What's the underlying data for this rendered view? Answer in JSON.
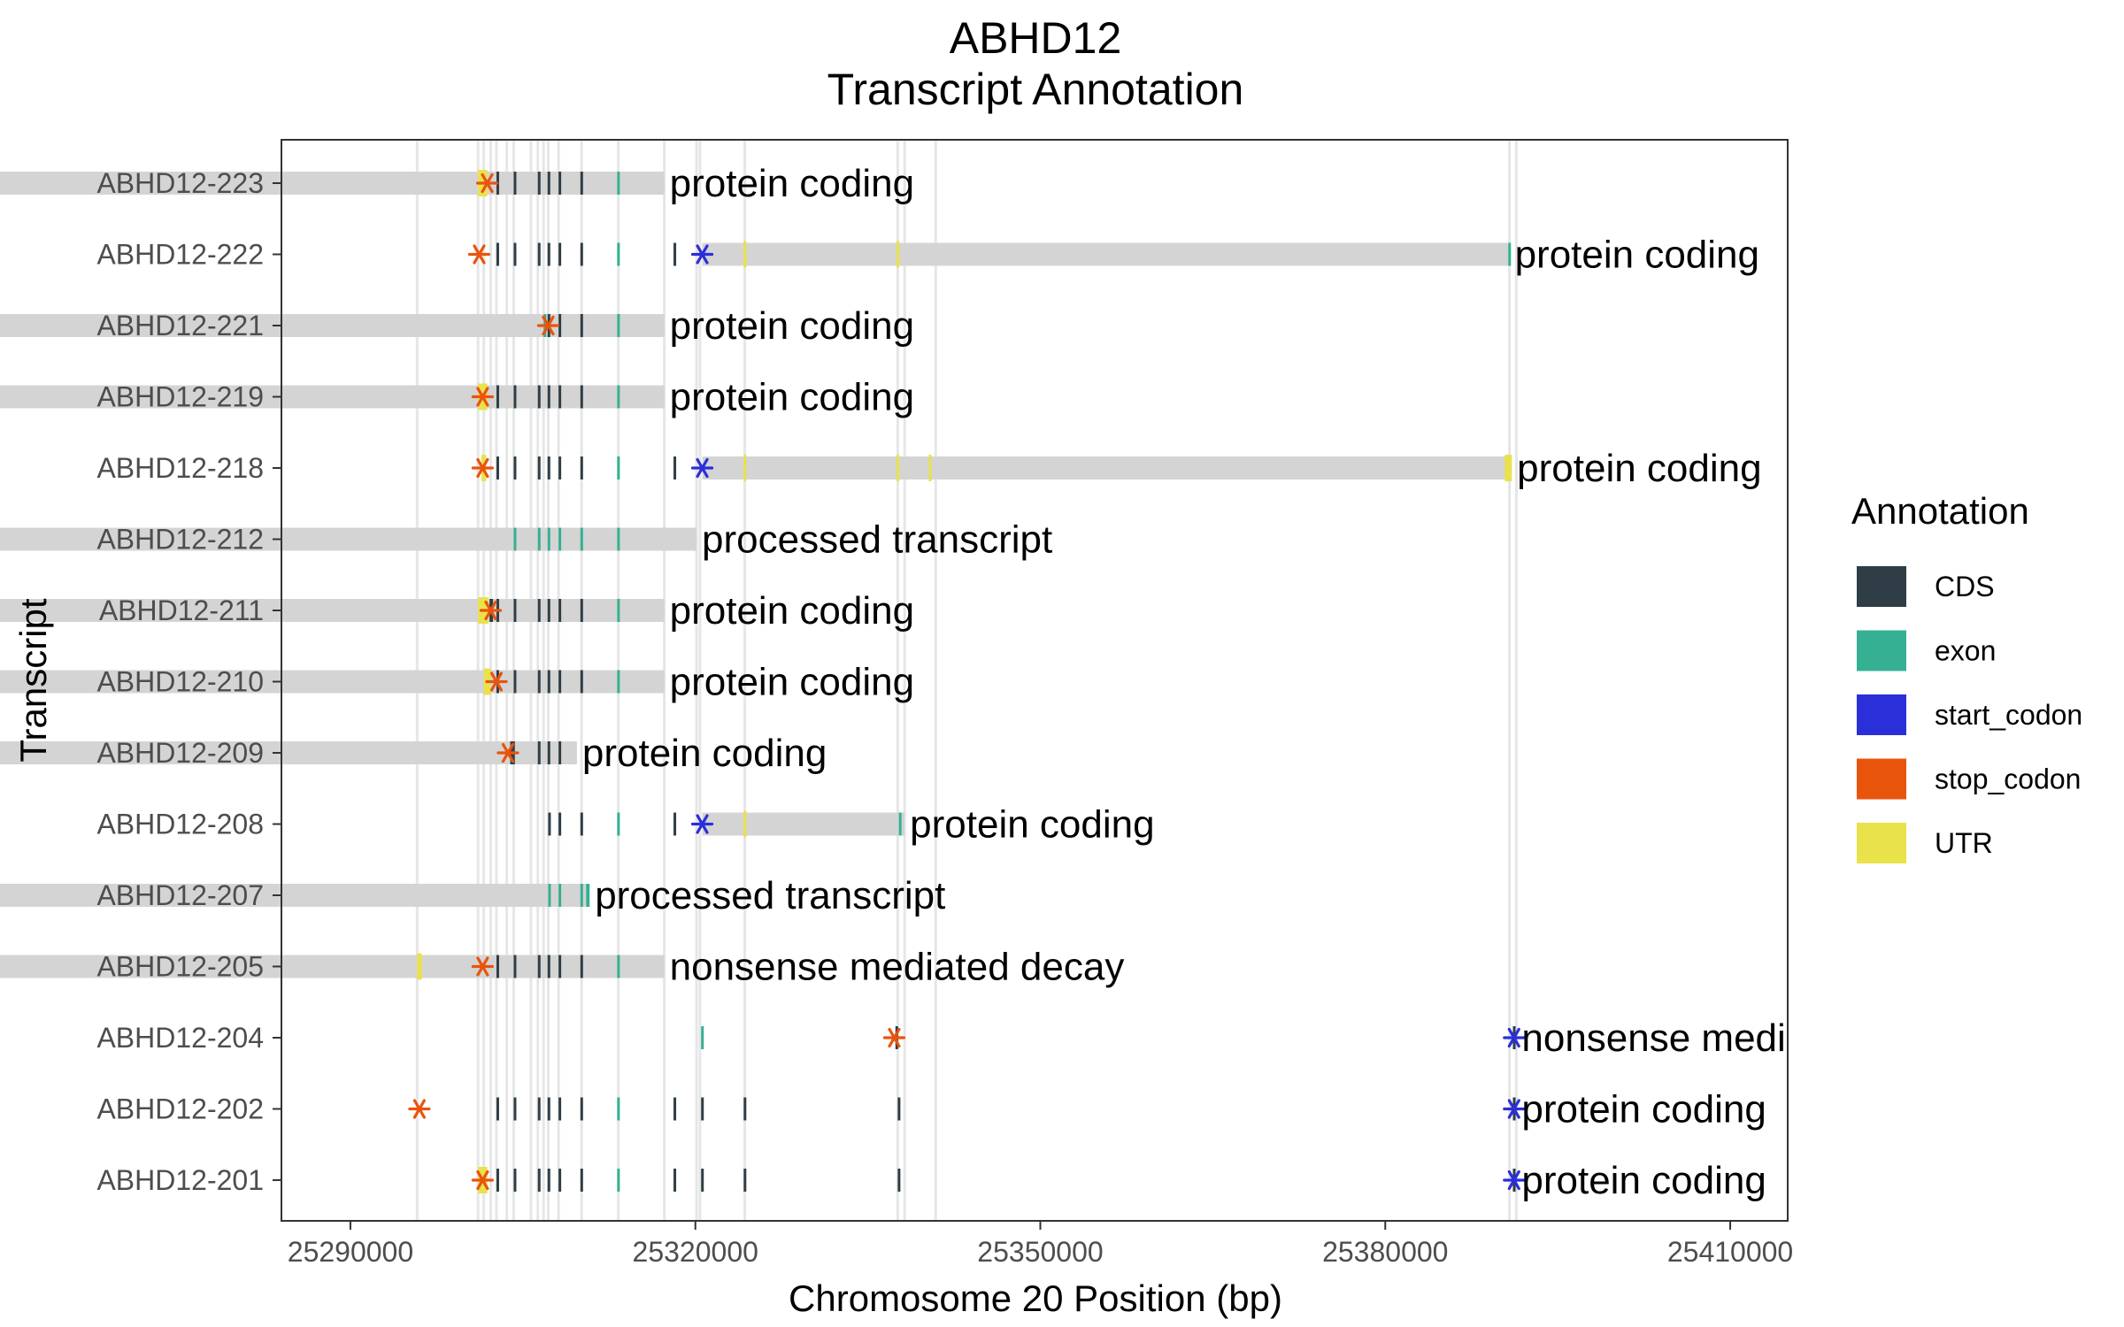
{
  "chart_data": {
    "type": "gene-structure",
    "title": "ABHD12",
    "subtitle": "Transcript Annotation",
    "xlabel": "Chromosome 20 Position (bp)",
    "ylabel": "Transcript",
    "xlim": [
      25284000,
      25415000
    ],
    "x_ticks": [
      25290000,
      25320000,
      25350000,
      25380000,
      25410000
    ],
    "grid": "exon positions (light vertical lines)",
    "legend": {
      "title": "Annotation",
      "placement": "right",
      "entries": [
        {
          "name": "CDS",
          "color": "#2f3e46"
        },
        {
          "name": "exon",
          "color": "#35b093"
        },
        {
          "name": "start_codon",
          "color": "#2b2fd9"
        },
        {
          "name": "stop_codon",
          "color": "#e9540d"
        },
        {
          "name": "UTR",
          "color": "#e9e24a"
        }
      ]
    },
    "colors": {
      "transcript_bar": "#d4d4d4",
      "guide_line": "#e6e6e6",
      "panel_border": "#333333"
    },
    "exon_guides": [
      25295800,
      25301100,
      25301600,
      25302200,
      25302700,
      25303600,
      25304200,
      25305700,
      25306300,
      25306800,
      25307200,
      25308100,
      25310100,
      25313300,
      25317300,
      25320100,
      25320400,
      25324300,
      25337600,
      25338200,
      25340900,
      25390800,
      25391400
    ],
    "transcripts": [
      {
        "name": "ABHD12-223",
        "biotype": "protein coding",
        "start": [],
        "end": 25317300,
        "utr": [
          [
            25301100,
            25301900
          ]
        ],
        "cds": [
          [
            25302700,
            25302900
          ],
          [
            25304200,
            25304400
          ],
          [
            25306300,
            25306450
          ],
          [
            25307150,
            25307300
          ],
          [
            25308100,
            25308250
          ],
          [
            25310000,
            25310150
          ]
        ],
        "exon": [
          [
            25313200,
            25313400
          ]
        ],
        "stop": [
          25301900
        ]
      },
      {
        "name": "ABHD12-222",
        "biotype": "protein coding",
        "start": [
          25320600
        ],
        "end": 25390800,
        "utr": [
          [
            25324200,
            25324400
          ],
          [
            25337500,
            25337700
          ]
        ],
        "cds": [
          [
            25302700,
            25302900
          ],
          [
            25304200,
            25304400
          ],
          [
            25306300,
            25306450
          ],
          [
            25307150,
            25307300
          ],
          [
            25308100,
            25308250
          ],
          [
            25310000,
            25310150
          ],
          [
            25318100,
            25318250
          ]
        ],
        "exon": [
          [
            25313200,
            25313400
          ],
          [
            25390700,
            25390850
          ]
        ],
        "stop": [
          25301200
        ]
      },
      {
        "name": "ABHD12-221",
        "biotype": "protein coding",
        "start": [],
        "end": 25317300,
        "utr": [],
        "cds": [
          [
            25307150,
            25307300
          ],
          [
            25308100,
            25308250
          ],
          [
            25310000,
            25310150
          ]
        ],
        "exon": [
          [
            25306800,
            25307000
          ],
          [
            25313200,
            25313400
          ]
        ],
        "stop": [
          25307200
        ]
      },
      {
        "name": "ABHD12-219",
        "biotype": "protein coding",
        "start": [],
        "end": 25317300,
        "utr": [
          [
            25301100,
            25301900
          ]
        ],
        "cds": [
          [
            25302700,
            25302900
          ],
          [
            25304200,
            25304400
          ],
          [
            25306300,
            25306450
          ],
          [
            25307150,
            25307300
          ],
          [
            25308100,
            25308250
          ],
          [
            25310000,
            25310150
          ]
        ],
        "exon": [
          [
            25313200,
            25313400
          ]
        ],
        "stop": [
          25301500
        ]
      },
      {
        "name": "ABHD12-218",
        "biotype": "protein coding",
        "start": [
          25320600
        ],
        "end": 25391000,
        "utr": [
          [
            25301400,
            25301800
          ],
          [
            25324200,
            25324400
          ],
          [
            25337500,
            25337700
          ],
          [
            25340300,
            25340500
          ],
          [
            25390400,
            25391000
          ]
        ],
        "cds": [
          [
            25302700,
            25302900
          ],
          [
            25304200,
            25304400
          ],
          [
            25306300,
            25306450
          ],
          [
            25307150,
            25307300
          ],
          [
            25308100,
            25308250
          ],
          [
            25310000,
            25310150
          ],
          [
            25318100,
            25318250
          ]
        ],
        "exon": [
          [
            25313200,
            25313400
          ]
        ],
        "stop": [
          25301500
        ]
      },
      {
        "name": "ABHD12-212",
        "biotype": "processed transcript",
        "start": [],
        "end": 25320100,
        "utr": [],
        "cds": [],
        "exon": [
          [
            25304200,
            25304400
          ],
          [
            25306300,
            25306450
          ],
          [
            25307150,
            25307300
          ],
          [
            25308100,
            25308250
          ],
          [
            25310000,
            25310150
          ],
          [
            25313200,
            25313400
          ]
        ],
        "stop": []
      },
      {
        "name": "ABHD12-211",
        "biotype": "protein coding",
        "start": [],
        "end": 25317300,
        "utr": [
          [
            25301100,
            25302000
          ]
        ],
        "cds": [
          [
            25302100,
            25302400
          ],
          [
            25302700,
            25302900
          ],
          [
            25304200,
            25304400
          ],
          [
            25306300,
            25306450
          ],
          [
            25307150,
            25307300
          ],
          [
            25308100,
            25308250
          ],
          [
            25310000,
            25310150
          ]
        ],
        "exon": [
          [
            25313200,
            25313400
          ]
        ],
        "stop": [
          25302200
        ]
      },
      {
        "name": "ABHD12-210",
        "biotype": "protein coding",
        "start": [],
        "end": 25317300,
        "utr": [
          [
            25301600,
            25302200
          ]
        ],
        "cds": [
          [
            25302700,
            25302900
          ],
          [
            25304200,
            25304400
          ],
          [
            25306300,
            25306450
          ],
          [
            25307150,
            25307300
          ],
          [
            25308100,
            25308250
          ],
          [
            25310000,
            25310150
          ]
        ],
        "exon": [
          [
            25313200,
            25313400
          ]
        ],
        "stop": [
          25302700
        ]
      },
      {
        "name": "ABHD12-209",
        "biotype": "protein coding",
        "start": [],
        "end": 25309700,
        "utr": [],
        "cds": [
          [
            25303900,
            25304300
          ],
          [
            25306300,
            25306450
          ],
          [
            25307150,
            25307300
          ],
          [
            25308100,
            25308250
          ]
        ],
        "exon": [],
        "stop": [
          25303700
        ]
      },
      {
        "name": "ABHD12-208",
        "biotype": "protein coding",
        "start": [
          25320600
        ],
        "end": 25338200,
        "utr": [
          [
            25324200,
            25324400
          ]
        ],
        "cds": [
          [
            25307200,
            25307350
          ],
          [
            25308100,
            25308250
          ],
          [
            25310000,
            25310150
          ],
          [
            25318100,
            25318250
          ]
        ],
        "exon": [
          [
            25313200,
            25313400
          ],
          [
            25337700,
            25337900
          ]
        ],
        "stop": []
      },
      {
        "name": "ABHD12-207",
        "biotype": "processed transcript",
        "start": [],
        "end": 25310800,
        "utr": [],
        "cds": [],
        "exon": [
          [
            25307200,
            25307400
          ],
          [
            25308100,
            25308300
          ],
          [
            25310000,
            25310150
          ],
          [
            25310500,
            25310800
          ]
        ],
        "stop": []
      },
      {
        "name": "ABHD12-205",
        "biotype": "nonsense mediated decay",
        "start": [],
        "end": 25317300,
        "utr": [
          [
            25295800,
            25296200
          ]
        ],
        "cds": [
          [
            25302700,
            25302900
          ],
          [
            25304200,
            25304400
          ],
          [
            25306300,
            25306450
          ],
          [
            25307150,
            25307300
          ],
          [
            25308100,
            25308250
          ],
          [
            25310000,
            25310150
          ]
        ],
        "exon": [
          [
            25313200,
            25313400
          ]
        ],
        "stop": [
          25301500
        ]
      },
      {
        "name": "ABHD12-204",
        "biotype": "nonsense mediated decay",
        "start": [
          25391200
        ],
        "end": 25391400,
        "utr": [],
        "cds": [
          [
            25337400,
            25337600
          ],
          [
            25391100,
            25391300
          ]
        ],
        "exon": [
          [
            25320500,
            25320700
          ]
        ],
        "stop": [
          25337300
        ]
      },
      {
        "name": "ABHD12-202",
        "biotype": "protein coding",
        "start": [
          25391200
        ],
        "end": 25391400,
        "utr": [],
        "cds": [
          [
            25302700,
            25302900
          ],
          [
            25304200,
            25304400
          ],
          [
            25306300,
            25306450
          ],
          [
            25307150,
            25307300
          ],
          [
            25308100,
            25308250
          ],
          [
            25310000,
            25310150
          ],
          [
            25318100,
            25318250
          ],
          [
            25320500,
            25320700
          ],
          [
            25324200,
            25324400
          ],
          [
            25337600,
            25337800
          ],
          [
            25391100,
            25391300
          ]
        ],
        "exon": [
          [
            25313200,
            25313400
          ]
        ],
        "stop": [
          25296000
        ]
      },
      {
        "name": "ABHD12-201",
        "biotype": "protein coding",
        "start": [
          25391200
        ],
        "end": 25391400,
        "utr": [
          [
            25301100,
            25301900
          ]
        ],
        "cds": [
          [
            25302700,
            25302900
          ],
          [
            25304200,
            25304400
          ],
          [
            25306300,
            25306450
          ],
          [
            25307150,
            25307300
          ],
          [
            25308100,
            25308250
          ],
          [
            25310000,
            25310150
          ],
          [
            25318100,
            25318250
          ],
          [
            25320500,
            25320700
          ],
          [
            25324200,
            25324400
          ],
          [
            25337600,
            25337800
          ],
          [
            25391100,
            25391300
          ]
        ],
        "exon": [
          [
            25313200,
            25313400
          ]
        ],
        "stop": [
          25301500
        ]
      }
    ]
  }
}
